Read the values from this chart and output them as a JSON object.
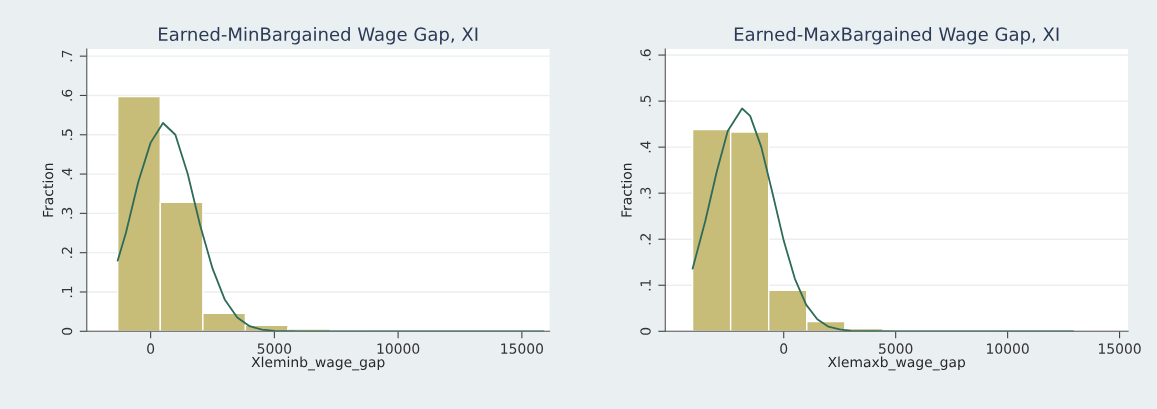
{
  "chart_data": [
    {
      "type": "histogram",
      "title": "Earned-MinBargained Wage Gap, XI",
      "xlabel": "Xleminb_wage_gap",
      "ylabel": "Fraction",
      "bins": [
        -1330,
        390,
        2110,
        3830,
        5550,
        7270,
        8990,
        10710,
        12430,
        14150,
        15870
      ],
      "values": [
        0.597,
        0.328,
        0.046,
        0.015,
        0.006,
        0.002,
        0.001,
        0.001,
        0.001,
        0.001
      ],
      "color": "#c8bd78",
      "series": [
        {
          "type": "line",
          "color": "#2e6b5a",
          "x": [
            -1330,
            -1000,
            -500,
            0,
            500,
            1000,
            1500,
            2000,
            2500,
            3000,
            3500,
            4000,
            4500,
            5000,
            6000,
            10000,
            15870
          ],
          "values": [
            0.18,
            0.25,
            0.38,
            0.48,
            0.53,
            0.5,
            0.4,
            0.27,
            0.16,
            0.08,
            0.035,
            0.013,
            0.004,
            0.001,
            0,
            0,
            0
          ]
        }
      ],
      "xlim": [
        -2580,
        16120
      ],
      "xticks": [
        0,
        5000,
        10000,
        15000
      ],
      "ylim": [
        0,
        0.718
      ],
      "yticks": [
        0,
        {
          "value": 0.1,
          "label": ".1"
        },
        {
          "value": 0.2,
          "label": ".2"
        },
        {
          "value": 0.3,
          "label": ".3"
        },
        {
          "value": 0.4,
          "label": ".4"
        },
        {
          "value": 0.5,
          "label": ".5"
        },
        {
          "value": 0.6,
          "label": ".6"
        },
        {
          "value": 0.7,
          "label": ".7"
        }
      ],
      "grid": "y"
    },
    {
      "type": "histogram",
      "title": "Earned-MaxBargained Wage Gap, XI",
      "xlabel": "Xlemaxb_wage_gap",
      "ylabel": "Fraction",
      "bins": [
        -4070,
        -2370,
        -670,
        1030,
        2730,
        4430,
        6130,
        7830,
        9530,
        11230,
        12930
      ],
      "values": [
        0.438,
        0.433,
        0.089,
        0.021,
        0.006,
        null,
        0.001,
        0.001,
        null,
        0.001
      ],
      "color": "#c8bd78",
      "series": [
        {
          "type": "line",
          "color": "#2e6b5a",
          "x": [
            -4070,
            -3500,
            -3000,
            -2500,
            -1860,
            -1500,
            -1000,
            -500,
            0,
            500,
            1000,
            1500,
            2000,
            2500,
            3000,
            5000,
            12930
          ],
          "values": [
            0.136,
            0.24,
            0.345,
            0.435,
            0.484,
            0.468,
            0.4,
            0.3,
            0.197,
            0.114,
            0.058,
            0.026,
            0.01,
            0.004,
            0.001,
            0,
            0
          ]
        }
      ],
      "xlim": [
        -5290,
        15380
      ],
      "xticks": [
        0,
        5000,
        10000,
        15000
      ],
      "ylim": [
        0,
        0.613
      ],
      "yticks": [
        0,
        {
          "value": 0.1,
          "label": ".1"
        },
        {
          "value": 0.2,
          "label": ".2"
        },
        {
          "value": 0.3,
          "label": ".3"
        },
        {
          "value": 0.4,
          "label": ".4"
        },
        {
          "value": 0.5,
          "label": ".5"
        },
        {
          "value": 0.6,
          "label": ".6"
        }
      ],
      "grid": "y"
    }
  ]
}
